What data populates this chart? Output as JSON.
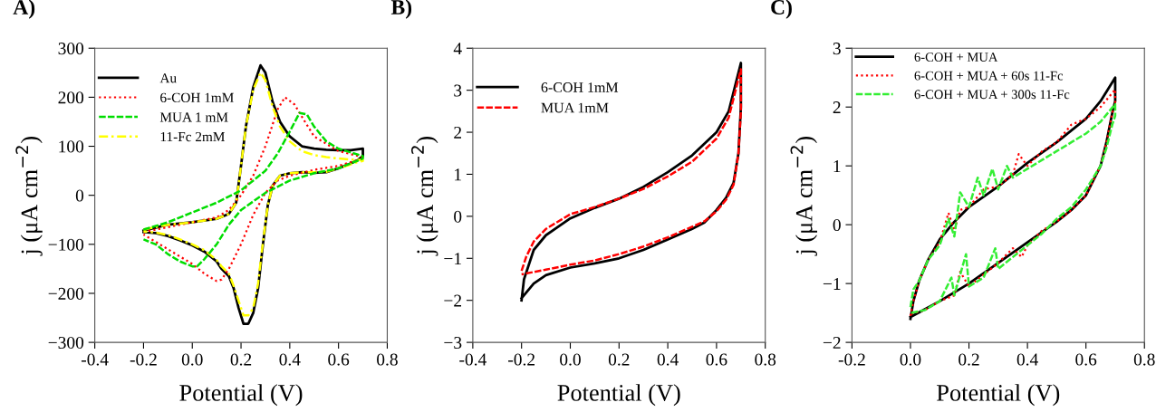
{
  "chart_data": [
    {
      "type": "line",
      "title": "A)",
      "xlabel": "Potential (V)",
      "ylabel": "j (μA cm$^{−2}$)",
      "xlim": [
        -0.4,
        0.8
      ],
      "xticks": [
        {
          "value": -0.4,
          "label": "-0.4"
        },
        {
          "value": -0.2,
          "label": "-0.2"
        },
        {
          "value": 0,
          "label": "0.0"
        },
        {
          "value": 0.2,
          "label": "0.2"
        },
        {
          "value": 0.4,
          "label": "0.4"
        },
        {
          "value": 0.6,
          "label": "0.6"
        },
        {
          "value": 0.8,
          "label": "0.8"
        }
      ],
      "ylim": [
        -300,
        300
      ],
      "yticks": [
        -300,
        -200,
        -100,
        0,
        100,
        200,
        300
      ],
      "grid": false,
      "legend": "top left",
      "marker": "none",
      "series": [
        {
          "name": "Au",
          "color": "#000000",
          "line_style": "solid",
          "x": [
            -0.2,
            -0.1,
            0.0,
            0.1,
            0.15,
            0.18,
            0.2,
            0.22,
            0.25,
            0.28,
            0.3,
            0.33,
            0.36,
            0.4,
            0.45,
            0.5,
            0.55,
            0.6,
            0.65,
            0.7,
            0.7,
            0.68,
            0.65,
            0.6,
            0.55,
            0.5,
            0.45,
            0.4,
            0.36,
            0.33,
            0.31,
            0.29,
            0.27,
            0.25,
            0.23,
            0.21,
            0.19,
            0.17,
            0.15,
            0.12,
            0.1,
            0.05,
            0,
            -0.05,
            -0.1,
            -0.15,
            -0.2
          ],
          "values": [
            -72,
            -60,
            -55,
            -48,
            -38,
            -15,
            60,
            140,
            220,
            265,
            250,
            190,
            150,
            120,
            100,
            95,
            93,
            92,
            92,
            95,
            80,
            72,
            65,
            55,
            47,
            46,
            47,
            45,
            40,
            20,
            -20,
            -100,
            -190,
            -240,
            -262,
            -262,
            -230,
            -190,
            -165,
            -150,
            -135,
            -115,
            -102,
            -92,
            -83,
            -77,
            -75
          ]
        },
        {
          "name": "6-COH 1mM",
          "color": "#ff0000",
          "line_style": "dotted",
          "x": [
            -0.2,
            0,
            0.1,
            0.15,
            0.2,
            0.25,
            0.3,
            0.35,
            0.38,
            0.42,
            0.45,
            0.5,
            0.6,
            0.7,
            0.7,
            0.6,
            0.5,
            0.4,
            0.35,
            0.3,
            0.25,
            0.2,
            0.15,
            0.12,
            0.1,
            0.05,
            0,
            -0.1,
            -0.2
          ],
          "values": [
            -75,
            -55,
            -45,
            -30,
            0,
            40,
            100,
            175,
            200,
            185,
            160,
            120,
            90,
            78,
            75,
            60,
            52,
            40,
            30,
            5,
            -40,
            -100,
            -150,
            -172,
            -175,
            -160,
            -140,
            -110,
            -80
          ]
        },
        {
          "name": "MUA 1 mM",
          "color": "#00dd00",
          "line_style": "dashed",
          "x": [
            -0.2,
            -0.1,
            0,
            0.1,
            0.2,
            0.3,
            0.35,
            0.4,
            0.44,
            0.47,
            0.5,
            0.55,
            0.6,
            0.7,
            0.7,
            0.6,
            0.5,
            0.4,
            0.3,
            0.2,
            0.15,
            0.1,
            0.05,
            0.02,
            0,
            -0.05,
            -0.1,
            -0.15,
            -0.2
          ],
          "values": [
            -70,
            -55,
            -35,
            -15,
            10,
            50,
            85,
            130,
            168,
            165,
            140,
            110,
            95,
            80,
            75,
            55,
            45,
            30,
            5,
            -30,
            -60,
            -100,
            -130,
            -145,
            -145,
            -135,
            -120,
            -100,
            -90
          ]
        },
        {
          "name": "11-Fc 2mM",
          "color": "#ffff00",
          "line_style": "dashdot",
          "x": [
            -0.2,
            -0.1,
            0.0,
            0.1,
            0.15,
            0.18,
            0.2,
            0.22,
            0.25,
            0.28,
            0.3,
            0.33,
            0.36,
            0.4,
            0.45,
            0.5,
            0.55,
            0.6,
            0.65,
            0.7,
            0.7,
            0.68,
            0.65,
            0.6,
            0.55,
            0.5,
            0.45,
            0.4,
            0.36,
            0.33,
            0.31,
            0.29,
            0.27,
            0.25,
            0.23,
            0.21,
            0.19,
            0.17,
            0.15,
            0.12,
            0.1,
            0.05,
            0,
            -0.05,
            -0.1,
            -0.15,
            -0.2
          ],
          "values": [
            -70,
            -60,
            -55,
            -48,
            -38,
            -15,
            60,
            140,
            215,
            250,
            235,
            180,
            140,
            110,
            90,
            82,
            78,
            75,
            73,
            72,
            70,
            68,
            63,
            55,
            48,
            47,
            47,
            45,
            40,
            20,
            -20,
            -95,
            -180,
            -230,
            -245,
            -245,
            -215,
            -185,
            -160,
            -145,
            -132,
            -112,
            -100,
            -90,
            -81,
            -76,
            -74
          ]
        }
      ]
    },
    {
      "type": "line",
      "title": "B)",
      "xlabel": "Potential (V)",
      "ylabel": "j (μA cm$^{−2}$)",
      "xlim": [
        -0.4,
        0.8
      ],
      "xticks": [
        {
          "value": -0.4,
          "label": "-0.4"
        },
        {
          "value": -0.2,
          "label": "-0.2"
        },
        {
          "value": 0,
          "label": "0.0"
        },
        {
          "value": 0.2,
          "label": "0.2"
        },
        {
          "value": 0.4,
          "label": "0.4"
        },
        {
          "value": 0.6,
          "label": "0.6"
        },
        {
          "value": 0.8,
          "label": "0.8"
        }
      ],
      "ylim": [
        -3,
        4
      ],
      "yticks": [
        -3,
        -2,
        -1,
        0,
        1,
        2,
        3,
        4
      ],
      "grid": false,
      "legend": "top left",
      "marker": "none",
      "series": [
        {
          "name": "6-COH 1mM",
          "color": "#000000",
          "line_style": "solid",
          "x": [
            -0.2,
            -0.19,
            -0.15,
            -0.1,
            0,
            0.1,
            0.2,
            0.3,
            0.4,
            0.5,
            0.6,
            0.65,
            0.7,
            0.7,
            0.69,
            0.67,
            0.64,
            0.6,
            0.55,
            0.5,
            0.4,
            0.3,
            0.2,
            0.1,
            0,
            -0.1,
            -0.15,
            -0.2
          ],
          "values": [
            -2.0,
            -1.5,
            -0.8,
            -0.45,
            -0.05,
            0.2,
            0.42,
            0.7,
            1.05,
            1.45,
            2.0,
            2.5,
            3.65,
            2.6,
            1.5,
            0.8,
            0.45,
            0.15,
            -0.15,
            -0.3,
            -0.55,
            -0.8,
            -1.0,
            -1.12,
            -1.22,
            -1.4,
            -1.6,
            -1.95
          ]
        },
        {
          "name": "MUA 1mM",
          "color": "#ff0000",
          "line_style": "dashed",
          "x": [
            -0.2,
            -0.18,
            -0.15,
            -0.1,
            0,
            0.1,
            0.2,
            0.3,
            0.4,
            0.5,
            0.6,
            0.65,
            0.7,
            0.7,
            0.69,
            0.67,
            0.64,
            0.6,
            0.55,
            0.5,
            0.4,
            0.3,
            0.2,
            0.1,
            0,
            -0.1,
            -0.2
          ],
          "values": [
            -1.3,
            -0.95,
            -0.6,
            -0.3,
            0.05,
            0.22,
            0.42,
            0.65,
            0.95,
            1.3,
            1.85,
            2.35,
            3.5,
            2.5,
            1.5,
            0.75,
            0.4,
            0.12,
            -0.12,
            -0.25,
            -0.5,
            -0.72,
            -0.9,
            -1.05,
            -1.15,
            -1.27,
            -1.38
          ]
        }
      ]
    },
    {
      "type": "line",
      "title": "C)",
      "xlabel": "Potential (V)",
      "ylabel": "j (μA cm$^{−2}$)",
      "xlim": [
        -0.2,
        0.8
      ],
      "xticks": [
        {
          "value": -0.2,
          "label": "-0.2"
        },
        {
          "value": 0,
          "label": "0.0"
        },
        {
          "value": 0.2,
          "label": "0.2"
        },
        {
          "value": 0.4,
          "label": "0.4"
        },
        {
          "value": 0.6,
          "label": "0.6"
        },
        {
          "value": 0.8,
          "label": "0.8"
        }
      ],
      "ylim": [
        -2,
        3
      ],
      "yticks": [
        -2,
        -1,
        0,
        1,
        2,
        3
      ],
      "grid": false,
      "legend": "top left",
      "marker": "none",
      "series": [
        {
          "name": "6-COH + MUA",
          "color": "#000000",
          "line_style": "solid",
          "x": [
            0,
            0.01,
            0.03,
            0.06,
            0.1,
            0.15,
            0.2,
            0.3,
            0.4,
            0.5,
            0.6,
            0.65,
            0.7,
            0.7,
            0.69,
            0.67,
            0.65,
            0.6,
            0.55,
            0.5,
            0.4,
            0.3,
            0.2,
            0.1,
            0
          ],
          "values": [
            -1.6,
            -1.3,
            -0.95,
            -0.6,
            -0.25,
            0.05,
            0.3,
            0.65,
            1.05,
            1.4,
            1.8,
            2.1,
            2.5,
            2.1,
            1.9,
            1.4,
            1.0,
            0.5,
            0.25,
            0.05,
            -0.3,
            -0.65,
            -1.0,
            -1.3,
            -1.57
          ]
        },
        {
          "name": "6-COH + MUA + 60s 11-Fc",
          "color": "#ff0000",
          "line_style": "dotted",
          "x": [
            0,
            0.01,
            0.03,
            0.06,
            0.1,
            0.13,
            0.15,
            0.17,
            0.2,
            0.25,
            0.3,
            0.35,
            0.37,
            0.4,
            0.45,
            0.5,
            0.55,
            0.6,
            0.65,
            0.7,
            0.7,
            0.69,
            0.67,
            0.65,
            0.6,
            0.55,
            0.5,
            0.45,
            0.4,
            0.38,
            0.35,
            0.3,
            0.25,
            0.2,
            0.17,
            0.15,
            0.1,
            0.05,
            0
          ],
          "values": [
            -1.55,
            -1.3,
            -0.95,
            -0.6,
            -0.3,
            0.2,
            -0.1,
            0.25,
            0.3,
            0.6,
            0.65,
            0.85,
            1.2,
            1.0,
            1.25,
            1.4,
            1.7,
            1.8,
            2.0,
            2.3,
            2.05,
            1.9,
            1.4,
            1.0,
            0.5,
            0.25,
            0.05,
            -0.1,
            -0.35,
            -0.55,
            -0.4,
            -0.65,
            -0.85,
            -1.05,
            -0.8,
            -1.2,
            -1.3,
            -1.45,
            -1.52
          ]
        },
        {
          "name": "6-COH + MUA + 300s 11-Fc",
          "color": "#33ee33",
          "line_style": "dashed",
          "x": [
            0,
            0.01,
            0.03,
            0.06,
            0.1,
            0.13,
            0.15,
            0.17,
            0.2,
            0.23,
            0.25,
            0.28,
            0.3,
            0.33,
            0.35,
            0.4,
            0.45,
            0.5,
            0.55,
            0.6,
            0.65,
            0.7,
            0.7,
            0.69,
            0.67,
            0.65,
            0.6,
            0.55,
            0.5,
            0.45,
            0.4,
            0.35,
            0.3,
            0.29,
            0.25,
            0.2,
            0.19,
            0.15,
            0.14,
            0.1,
            0.05,
            0
          ],
          "values": [
            -1.4,
            -1.1,
            -0.95,
            -0.6,
            -0.35,
            0.1,
            -0.2,
            0.55,
            0.3,
            0.8,
            0.5,
            0.95,
            0.6,
            1.0,
            0.8,
            0.95,
            1.1,
            1.25,
            1.4,
            1.55,
            1.75,
            2.05,
            1.85,
            1.7,
            1.3,
            1.0,
            0.6,
            0.3,
            0.1,
            -0.15,
            -0.35,
            -0.55,
            -0.75,
            -0.4,
            -0.9,
            -1.05,
            -0.5,
            -1.2,
            -0.9,
            -1.3,
            -1.45,
            -1.5
          ]
        }
      ]
    }
  ]
}
